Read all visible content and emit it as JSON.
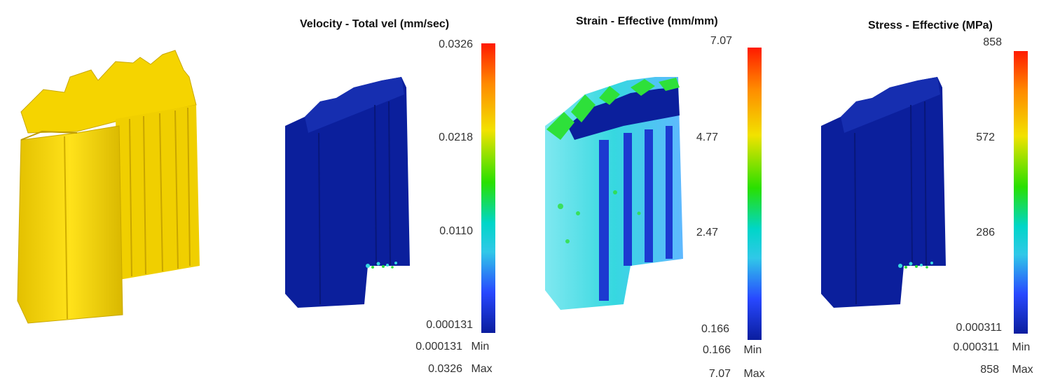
{
  "panels": [
    {
      "title": "Velocity - Total vel (mm/sec)",
      "ticks": [
        "0.0326",
        "0.0218",
        "0.0110",
        "0.000131"
      ],
      "min_value": "0.000131",
      "min_label": "Min",
      "max_value": "0.0326",
      "max_label": "Max"
    },
    {
      "title": "Strain - Effective (mm/mm)",
      "ticks": [
        "7.07",
        "4.77",
        "2.47",
        "0.166"
      ],
      "min_value": "0.166",
      "min_label": "Min",
      "max_value": "7.07",
      "max_label": "Max"
    },
    {
      "title": "Stress - Effective (MPa)",
      "ticks": [
        "858",
        "572",
        "286",
        "0.000311"
      ],
      "min_value": "0.000311",
      "min_label": "Min",
      "max_value": "858",
      "max_label": "Max"
    }
  ],
  "colors": {
    "part_yellow": "#f2d000",
    "field_blue": "#0b1f9c",
    "field_cyan": "#36d8e0",
    "field_green": "#2ee03a",
    "legend_red": "#ff1a00"
  }
}
